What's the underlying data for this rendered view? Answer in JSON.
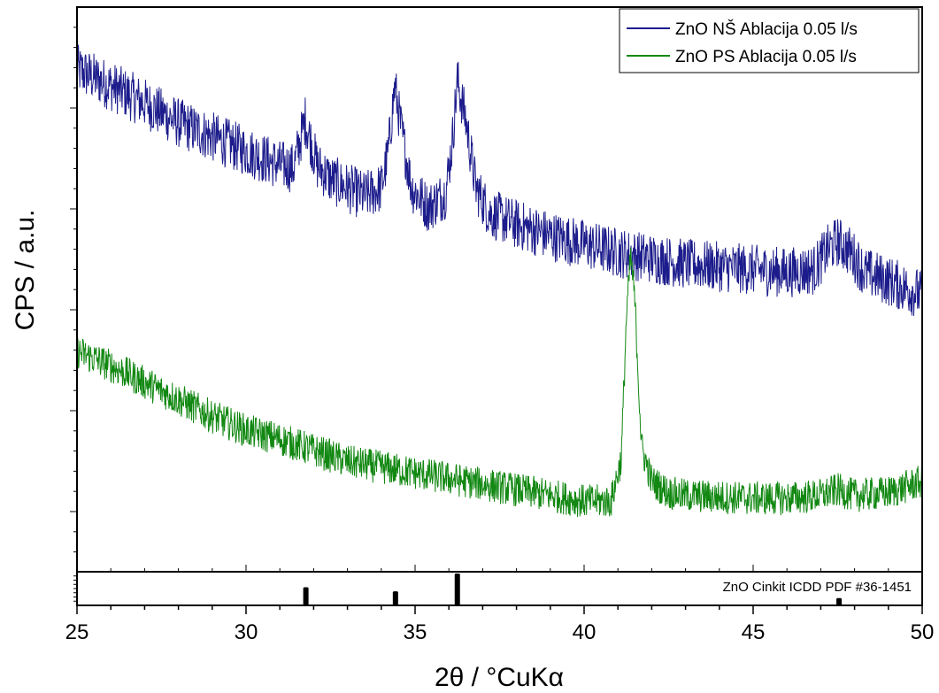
{
  "chart_data": {
    "type": "line",
    "xlabel": "2θ / °CuKα",
    "ylabel": "CPS / a.u.",
    "xlim": [
      25,
      50
    ],
    "xticks": [
      25,
      30,
      35,
      40,
      45,
      50
    ],
    "ylim": [
      0,
      100
    ],
    "y_tick_labels": "none",
    "grid": false,
    "legend_position": "top-right",
    "series": [
      {
        "name": "ZnO NŠ Ablacija 0.05 l/s",
        "color": "#1c1c8c",
        "noise": 4.5,
        "points": [
          [
            25.0,
            89
          ],
          [
            26.0,
            86
          ],
          [
            27.0,
            83
          ],
          [
            28.0,
            79.5
          ],
          [
            29.0,
            77
          ],
          [
            30.0,
            74.5
          ],
          [
            31.0,
            72
          ],
          [
            31.4,
            71.5
          ],
          [
            31.75,
            80
          ],
          [
            32.1,
            72
          ],
          [
            32.5,
            69.5
          ],
          [
            33.0,
            68
          ],
          [
            33.5,
            66.5
          ],
          [
            34.0,
            68
          ],
          [
            34.2,
            74
          ],
          [
            34.4,
            86
          ],
          [
            34.6,
            78
          ],
          [
            34.9,
            68
          ],
          [
            35.4,
            64.5
          ],
          [
            35.9,
            67
          ],
          [
            36.1,
            76
          ],
          [
            36.25,
            87
          ],
          [
            36.5,
            80
          ],
          [
            36.8,
            68
          ],
          [
            37.2,
            63.5
          ],
          [
            38.0,
            61.5
          ],
          [
            39.0,
            59.5
          ],
          [
            40.0,
            58
          ],
          [
            41.0,
            56.5
          ],
          [
            42.0,
            55.5
          ],
          [
            43.0,
            54.5
          ],
          [
            44.0,
            54
          ],
          [
            45.0,
            53.5
          ],
          [
            46.0,
            53
          ],
          [
            46.8,
            53.5
          ],
          [
            47.2,
            57
          ],
          [
            47.5,
            58.5
          ],
          [
            47.9,
            56.5
          ],
          [
            48.3,
            53
          ],
          [
            49.0,
            51.5
          ],
          [
            50.0,
            49
          ]
        ]
      },
      {
        "name": "ZnO PS Ablacija 0.05 l/s",
        "color": "#128812",
        "noise": 3.0,
        "points": [
          [
            25.0,
            39
          ],
          [
            26.0,
            36.5
          ],
          [
            27.0,
            33.5
          ],
          [
            28.0,
            30.5
          ],
          [
            29.0,
            27.5
          ],
          [
            30.0,
            25
          ],
          [
            31.0,
            23.5
          ],
          [
            32.0,
            21.5
          ],
          [
            33.0,
            19.5
          ],
          [
            34.0,
            18.5
          ],
          [
            35.0,
            17.5
          ],
          [
            36.0,
            16.5
          ],
          [
            37.0,
            15.5
          ],
          [
            38.0,
            14.5
          ],
          [
            39.0,
            13.5
          ],
          [
            40.0,
            12.5
          ],
          [
            40.8,
            12.5
          ],
          [
            41.1,
            20
          ],
          [
            41.25,
            45
          ],
          [
            41.38,
            56
          ],
          [
            41.5,
            48
          ],
          [
            41.7,
            22
          ],
          [
            42.0,
            16
          ],
          [
            42.5,
            14
          ],
          [
            43.0,
            13.5
          ],
          [
            44.0,
            13.2
          ],
          [
            45.0,
            13
          ],
          [
            46.0,
            13
          ],
          [
            47.0,
            13.5
          ],
          [
            47.5,
            14.5
          ],
          [
            48.0,
            13.5
          ],
          [
            49.0,
            14
          ],
          [
            50.0,
            16
          ]
        ]
      }
    ],
    "reference": {
      "label": "ZnO Cinkit ICDD PDF #36-1451",
      "color": "#000000",
      "peaks": [
        {
          "x": 31.77,
          "intensity": 57
        },
        {
          "x": 34.42,
          "intensity": 44
        },
        {
          "x": 36.25,
          "intensity": 100
        },
        {
          "x": 47.54,
          "intensity": 23
        }
      ]
    }
  }
}
